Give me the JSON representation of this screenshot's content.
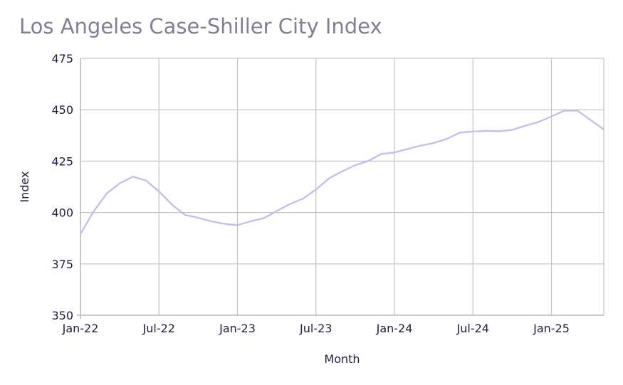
{
  "chart_data": {
    "type": "line",
    "title": "Los Angeles Case-Shiller City Index",
    "xlabel": "Month",
    "ylabel": "Index",
    "ylim": [
      350,
      475
    ],
    "yticks": [
      350,
      375,
      400,
      425,
      450,
      475
    ],
    "xlim": [
      "2022-01",
      "2025-05"
    ],
    "xticks": [
      {
        "label": "Jan-22",
        "value": "2022-01"
      },
      {
        "label": "Jul-22",
        "value": "2022-07"
      },
      {
        "label": "Jan-23",
        "value": "2023-01"
      },
      {
        "label": "Jul-23",
        "value": "2023-07"
      },
      {
        "label": "Jan-24",
        "value": "2024-01"
      },
      {
        "label": "Jul-24",
        "value": "2024-07"
      },
      {
        "label": "Jan-25",
        "value": "2025-01"
      }
    ],
    "grid": true,
    "line_color": "#cbbcf0",
    "series": [
      {
        "x": [
          "2022-01",
          "2022-02",
          "2022-03",
          "2022-04",
          "2022-05",
          "2022-06",
          "2022-07",
          "2022-08",
          "2022-09",
          "2022-10",
          "2022-11",
          "2022-12",
          "2023-01",
          "2023-02",
          "2023-03",
          "2023-04",
          "2023-05",
          "2023-06",
          "2023-07",
          "2023-08",
          "2023-09",
          "2023-10",
          "2023-11",
          "2023-12",
          "2024-01",
          "2024-02",
          "2024-03",
          "2024-04",
          "2024-05",
          "2024-06",
          "2024-07",
          "2024-08",
          "2024-09",
          "2024-10",
          "2024-11",
          "2024-12",
          "2025-01",
          "2025-02",
          "2025-03",
          "2025-04",
          "2025-05"
        ],
        "values": [
          389.5,
          400.5,
          409.2,
          414.2,
          417.4,
          415.6,
          410.2,
          403.8,
          398.8,
          397.4,
          395.7,
          394.5,
          393.8,
          395.7,
          397.2,
          400.7,
          404.1,
          406.7,
          411.2,
          416.6,
          420.0,
          423.0,
          425.1,
          428.5,
          429.2,
          430.9,
          432.5,
          433.8,
          435.8,
          438.9,
          439.4,
          439.7,
          439.5,
          440.2,
          442.2,
          444.0,
          446.7,
          449.6,
          449.5,
          444.9,
          440.4
        ]
      }
    ]
  }
}
